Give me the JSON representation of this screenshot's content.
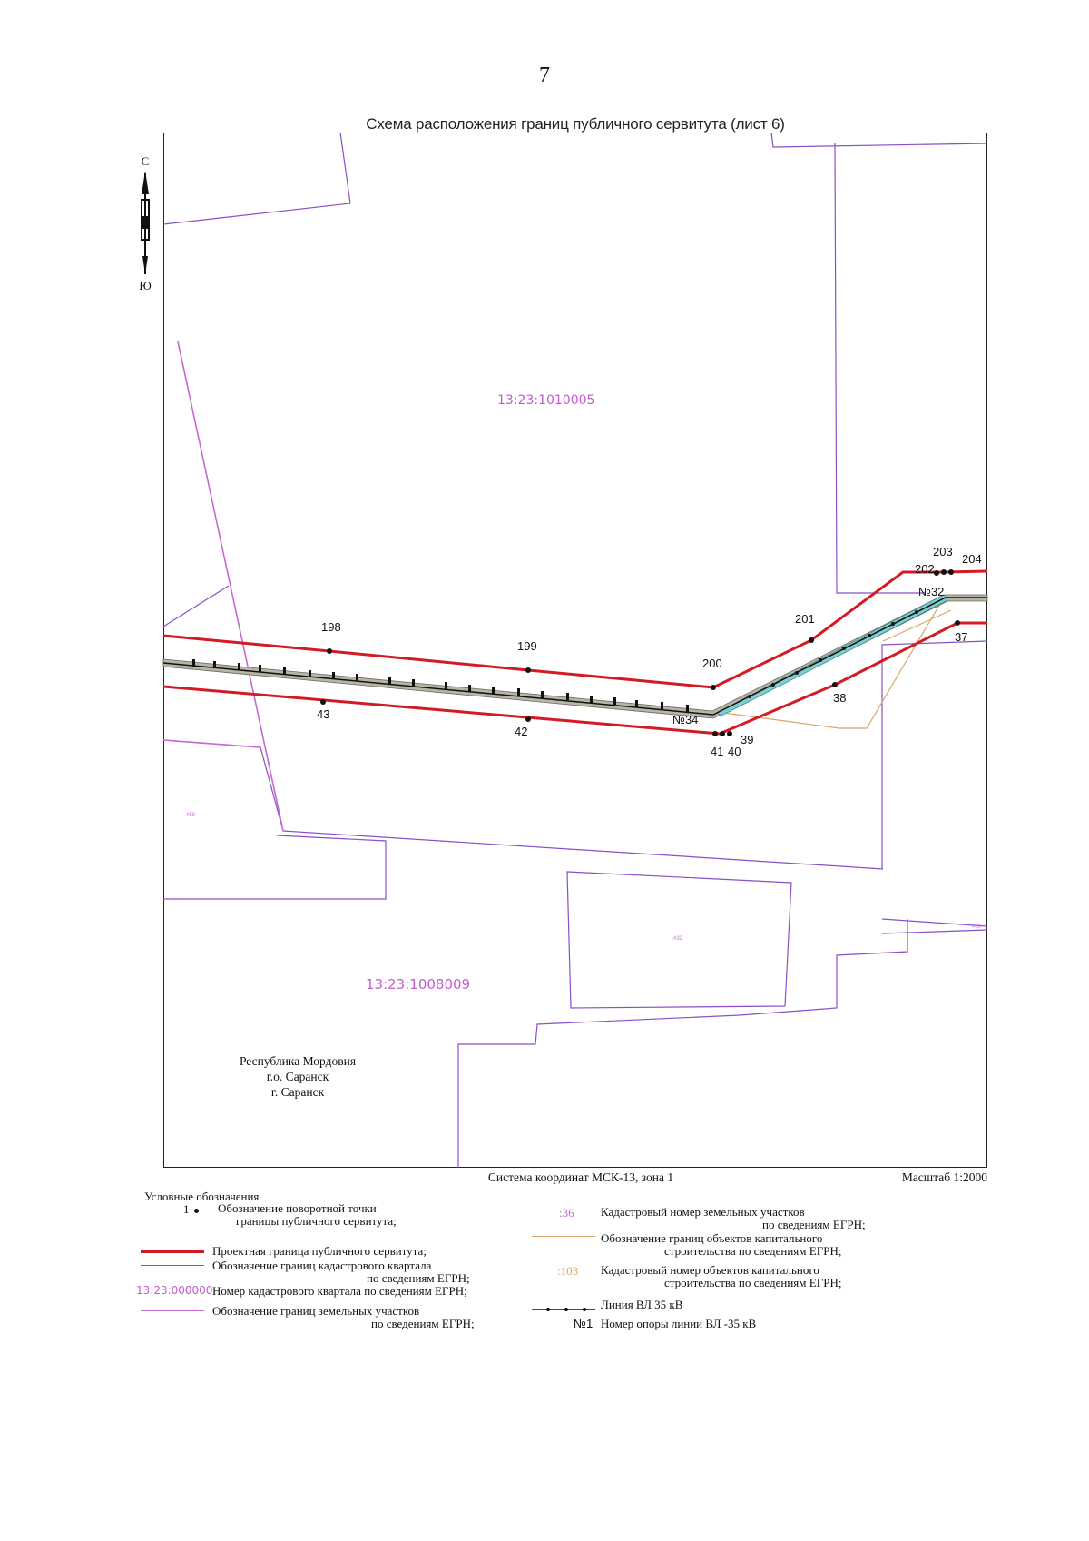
{
  "page_number": "7",
  "map_title": "Схема расположения границ публичного сервитута (лист 6)",
  "compass": {
    "north": "С",
    "south": "Ю",
    "icon": "north-arrow-icon"
  },
  "cadastral_quarters": [
    "13:23:1010005",
    "13:23:1008009"
  ],
  "parcel_labels": [
    "#59",
    "#32",
    "#60"
  ],
  "point_labels": {
    "p198": "198",
    "p199": "199",
    "p200": "200",
    "p201": "201",
    "p202": "202",
    "p203": "203",
    "p204": "204",
    "p37": "37",
    "p38": "38",
    "p39": "39",
    "p40": "40",
    "p41": "41",
    "p42": "42",
    "p43": "43"
  },
  "pole_labels": [
    "№34",
    "№32"
  ],
  "location": [
    "Республика Мордовия",
    "г.о. Саранск",
    "г. Саранск"
  ],
  "coordinate_system": "Система координат МСК-13, зона 1",
  "scale": "Масштаб 1:2000",
  "legend": {
    "title": "Условные обозначения",
    "left": [
      {
        "key": "point",
        "symbol": "1",
        "line1": "Обозначение поворотной точки",
        "line2": "границы публичного сервитута;"
      },
      {
        "key": "servitude",
        "line1": "Проектная граница публичного сервитута;"
      },
      {
        "key": "quarter-boundary",
        "line1": "Обозначение границ кадастрового квартала",
        "line2": "по сведениям ЕГРН;"
      },
      {
        "key": "quarter-number",
        "symbol": "13:23:000000",
        "line1": "Номер кадастрового квартала по сведениям ЕГРН;"
      },
      {
        "key": "parcel-boundary",
        "line1": "Обозначение границ земельных участков",
        "line2": "по сведениям ЕГРН;"
      }
    ],
    "right": [
      {
        "key": "parcel-number",
        "symbol": ":36",
        "line1": "Кадастровый номер земельных участков",
        "line2": "по сведениям ЕГРН;"
      },
      {
        "key": "building-boundary",
        "line1": "Обозначение границ объектов капитального",
        "line2": "строительства по сведениям ЕГРН;"
      },
      {
        "key": "building-number",
        "symbol": ":103",
        "line1": "Кадастровый номер объектов капитального",
        "line2": "строительства по сведениям ЕГРН;"
      },
      {
        "key": "power-line",
        "line1": "Линия ВЛ 35 кВ"
      },
      {
        "key": "pole-number",
        "symbol": "№1",
        "line1": "Номер опоры линии ВЛ -35 кВ"
      }
    ]
  },
  "colors": {
    "servitude": "#d41b24",
    "quarter_boundary": "#8a4fc6",
    "parcel_boundary": "#c46ad0",
    "quarter_label": "#c55bd1",
    "building": "#d9a76a",
    "power_line": "#111111",
    "zone_left": "#b8b4a6",
    "zone_right": "#7fcfd0"
  }
}
